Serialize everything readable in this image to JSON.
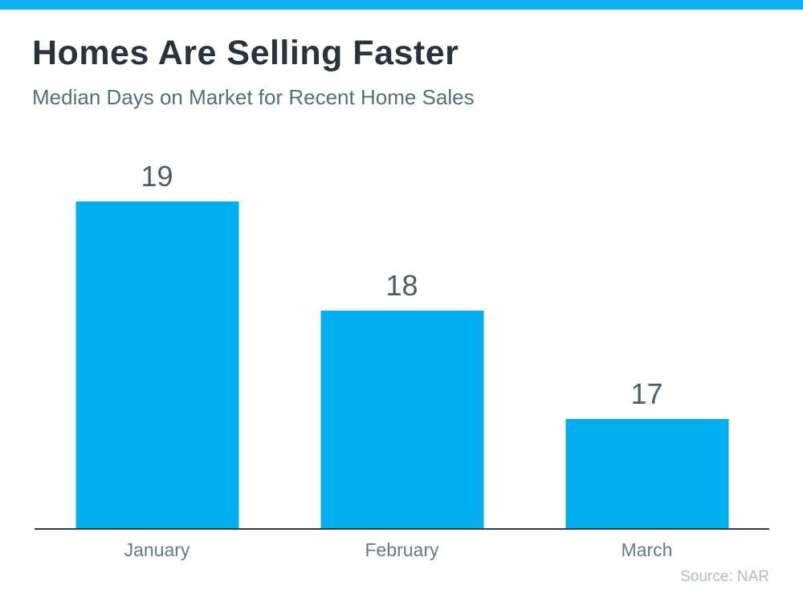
{
  "header": {
    "title": "Homes Are Selling Faster",
    "subtitle": "Median Days on Market for Recent Home Sales"
  },
  "footer": {
    "source": "Source: NAR"
  },
  "colors": {
    "banner": "#12AEEF",
    "bar": "#00AEEF",
    "title": "#2A333D",
    "subtitle": "#546E7E",
    "value-label": "#4D5C6C",
    "month-label": "#64798C",
    "axis": "#333E48",
    "source": "#AFBAC6"
  },
  "chart_data": {
    "type": "bar",
    "title": "Homes Are Selling Faster",
    "subtitle": "Median Days on Market for Recent Home Sales",
    "categories": [
      "January",
      "February",
      "March"
    ],
    "values": [
      19,
      18,
      17
    ],
    "xlabel": "",
    "ylabel": "",
    "ylim": [
      16,
      19
    ],
    "grid": false,
    "legend": false,
    "data_labels": [
      19,
      18,
      17
    ],
    "bar_color": "#00AEEF",
    "source": "Source: NAR"
  }
}
